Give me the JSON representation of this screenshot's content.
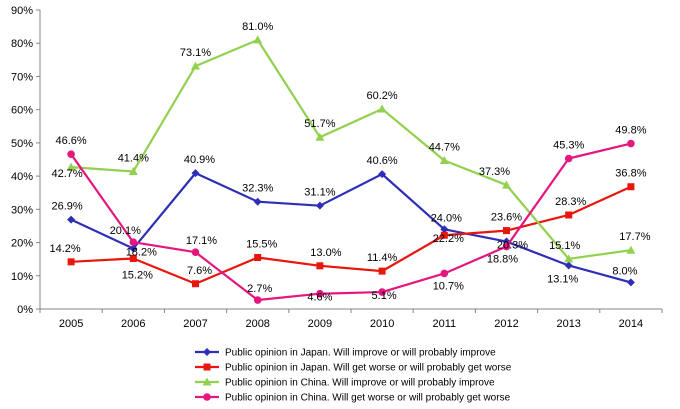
{
  "chart_data": {
    "type": "line",
    "categories": [
      "2005",
      "2006",
      "2007",
      "2008",
      "2009",
      "2010",
      "2011",
      "2012",
      "2013",
      "2014"
    ],
    "ylim": [
      0,
      90
    ],
    "yticks": [
      "0%",
      "10%",
      "20%",
      "30%",
      "40%",
      "50%",
      "60%",
      "70%",
      "80%",
      "90%"
    ],
    "grid": false,
    "legend_position": "bottom",
    "series": [
      {
        "name": "Public opinion in Japan. Will improve or will probably improve",
        "color": "#2E2EB8",
        "marker": "diamond",
        "values": [
          26.9,
          18.2,
          40.9,
          32.3,
          31.1,
          40.6,
          24.0,
          20.3,
          13.1,
          8.0
        ],
        "labels": [
          "26.9%",
          "18.2%",
          "40.9%",
          "32.3%",
          "31.1%",
          "40.6%",
          "24.0%",
          "20.3%",
          "13.1%",
          "8.0%"
        ]
      },
      {
        "name": "Public opinion in Japan. Will get worse or will probably get worse",
        "color": "#E8160C",
        "marker": "square",
        "values": [
          14.2,
          15.2,
          7.6,
          15.5,
          13.0,
          11.4,
          22.2,
          23.6,
          28.3,
          36.8
        ],
        "labels": [
          "14.2%",
          "15.2%",
          "7.6%",
          "15.5%",
          "13.0%",
          "11.4%",
          "22.2%",
          "23.6%",
          "28.3%",
          "36.8%"
        ]
      },
      {
        "name": "Public opinion in China. Will improve or will probably improve",
        "color": "#92D050",
        "marker": "triangle",
        "values": [
          42.7,
          41.4,
          73.1,
          81.0,
          51.7,
          60.2,
          44.7,
          37.3,
          15.1,
          17.7
        ],
        "labels": [
          "42.7%",
          "41.4%",
          "73.1%",
          "81.0%",
          "51.7%",
          "60.2%",
          "44.7%",
          "37.3%",
          "15.1%",
          "17.7%"
        ]
      },
      {
        "name": "Public opinion in China. Will get worse or will probably get worse",
        "color": "#E5177E",
        "marker": "circle",
        "values": [
          46.6,
          20.1,
          17.1,
          2.7,
          4.6,
          5.1,
          10.7,
          18.8,
          45.3,
          49.8
        ],
        "labels": [
          "46.6%",
          "20.1%",
          "17.1%",
          "2.7%",
          "4.6%",
          "5.1%",
          "10.7%",
          "18.8%",
          "45.3%",
          "49.8%"
        ]
      }
    ]
  }
}
